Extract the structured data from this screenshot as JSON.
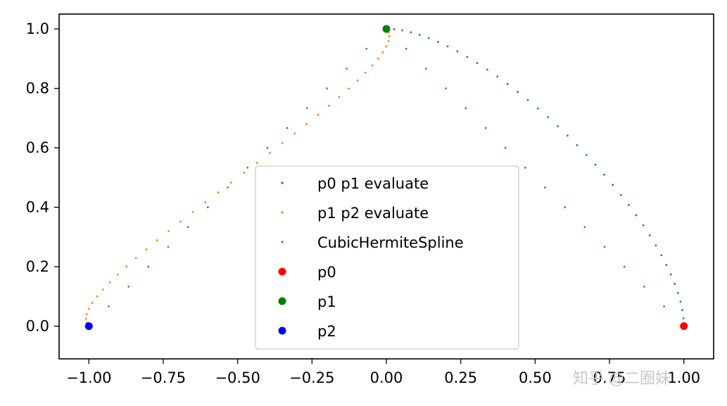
{
  "chart_data": {
    "type": "scatter",
    "title": "",
    "xlabel": "",
    "ylabel": "",
    "xlim": [
      -1.1,
      1.1
    ],
    "ylim": [
      -0.11,
      1.05
    ],
    "grid": false,
    "legend_position": "lower-center",
    "xticks": [
      -1.0,
      -0.75,
      -0.5,
      -0.25,
      0.0,
      0.25,
      0.5,
      0.75,
      1.0
    ],
    "xtick_labels": [
      "−1.00",
      "−0.75",
      "−0.50",
      "−0.25",
      "0.00",
      "0.25",
      "0.50",
      "0.75",
      "1.00"
    ],
    "yticks": [
      0.0,
      0.2,
      0.4,
      0.6,
      0.8,
      1.0
    ],
    "ytick_labels": [
      "0.0",
      "0.2",
      "0.4",
      "0.6",
      "0.8",
      "1.0"
    ],
    "series": [
      {
        "name": "p0 p1 evaluate",
        "color": "#1f77b4",
        "marker": "small-dot",
        "curve": "hermite",
        "p_start": [
          1.0,
          0.0
        ],
        "p_end": [
          0.0,
          1.0
        ],
        "m_start": [
          0.0,
          1.0
        ],
        "m_end": [
          -1.0,
          0.0
        ],
        "count": 40
      },
      {
        "name": "p1 p2 evaluate",
        "color": "#ff7f0e",
        "marker": "small-dot",
        "curve": "hermite",
        "p_start": [
          0.0,
          1.0
        ],
        "p_end": [
          -1.0,
          0.0
        ],
        "m_start": [
          0.4,
          -0.4
        ],
        "m_end": [
          0.4,
          -0.4
        ],
        "count": 40
      },
      {
        "name": "CubicHermiteSpline",
        "color": "#2ca02c",
        "marker": "small-dot",
        "curve": "piecewise-linear",
        "vertices": [
          [
            1.0,
            0.0
          ],
          [
            0.0,
            1.0
          ],
          [
            -1.0,
            0.0
          ]
        ],
        "count": 31
      },
      {
        "name": "p0",
        "color": "#ff0000",
        "marker": "dot",
        "points": [
          [
            1.0,
            0.0
          ]
        ]
      },
      {
        "name": "p1",
        "color": "#008000",
        "marker": "dot",
        "points": [
          [
            0.0,
            1.0
          ]
        ]
      },
      {
        "name": "p2",
        "color": "#0000ff",
        "marker": "dot",
        "points": [
          [
            -1.0,
            0.0
          ]
        ]
      }
    ]
  },
  "watermark": "知乎 @二圈妹"
}
